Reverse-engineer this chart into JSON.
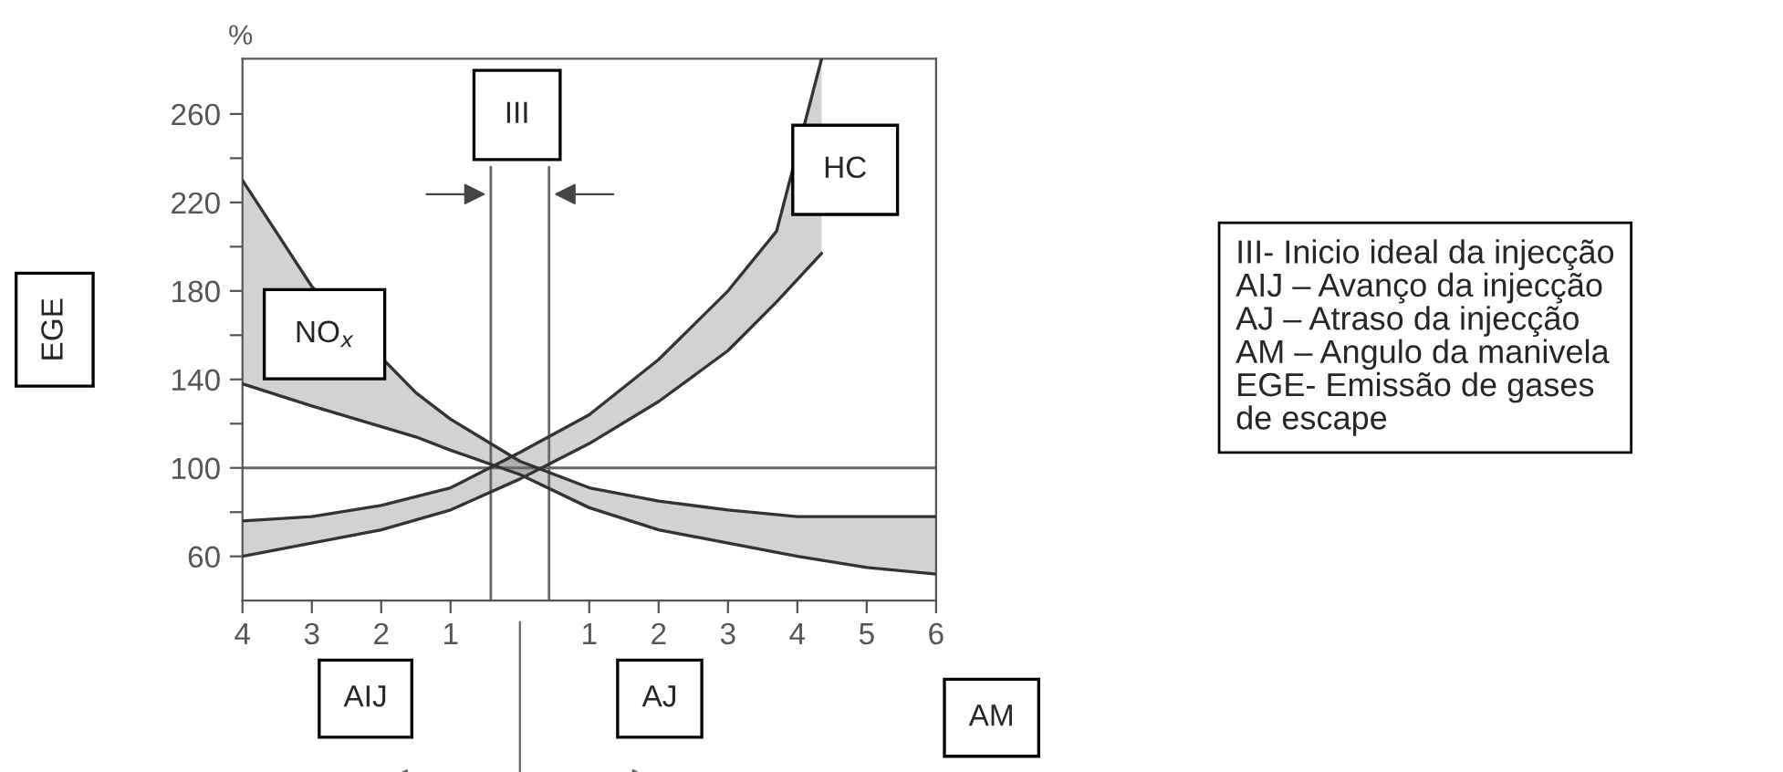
{
  "chart_data": {
    "type": "line",
    "ylabel": "EGE",
    "xlabel": "AM",
    "xlim": [
      -4,
      6
    ],
    "xticks": [
      {
        "value": -4,
        "label": "4"
      },
      {
        "value": -3,
        "label": "3"
      },
      {
        "value": -2,
        "label": "2"
      },
      {
        "value": -1,
        "label": "1"
      },
      1,
      2,
      3,
      4,
      5,
      6
    ],
    "ylim": [
      40,
      285
    ],
    "yticks": [
      60,
      {
        "value": 80,
        "label": null
      },
      100,
      {
        "value": 120,
        "label": null
      },
      140,
      {
        "value": 160,
        "label": null
      },
      180,
      {
        "value": 200,
        "label": null
      },
      220,
      {
        "value": 240,
        "label": null
      },
      260
    ],
    "series": [
      {
        "color": "#333333",
        "x": [
          -4,
          -3,
          -1.5,
          -1,
          0,
          1,
          2,
          3,
          4,
          5,
          6
        ],
        "values": [
          230,
          182,
          134,
          122,
          103,
          91,
          85,
          81,
          78,
          78,
          78
        ],
        "lower": [
          138,
          128,
          114,
          108,
          97,
          82,
          72,
          66,
          60,
          55,
          52
        ],
        "upper": [
          230,
          182,
          134,
          122,
          103,
          91,
          85,
          81,
          78,
          78,
          78
        ]
      },
      {
        "color": "#333333",
        "x": [
          -4,
          -3,
          -1.5,
          -1,
          0,
          1,
          2,
          3,
          4,
          5,
          6
        ],
        "values": [
          138,
          128,
          114,
          108,
          97,
          82,
          72,
          66,
          60,
          55,
          52
        ]
      },
      {
        "color": "#333333",
        "x": [
          -4,
          -3,
          -2,
          -1,
          0,
          1,
          2,
          3,
          3.7,
          4.35
        ],
        "values": [
          76,
          78,
          83,
          91,
          107,
          124,
          149,
          180,
          207,
          285
        ],
        "lower": [
          60,
          66,
          72,
          81,
          95,
          111,
          130,
          153,
          175,
          197
        ],
        "upper": [
          76,
          78,
          83,
          91,
          107,
          124,
          149,
          180,
          207,
          285
        ]
      },
      {
        "color": "#333333",
        "x": [
          -4,
          -3,
          -2,
          -1,
          0,
          1,
          2,
          3,
          3.7,
          4.35
        ],
        "values": [
          60,
          66,
          72,
          81,
          95,
          111,
          130,
          153,
          175,
          197
        ]
      }
    ],
    "ref_lines": [
      {
        "axis": "y",
        "value": 100
      },
      {
        "axis": "x",
        "value": -0.42
      },
      {
        "axis": "x",
        "value": 0.42
      }
    ],
    "annotations": [
      "NO$_{x}$",
      "HC",
      "III",
      "%",
      "AIJ",
      "AJ",
      "III- Inicio ideal da injecção\nAIJ – Avanço da injecção\nAJ – Atraso da injecção\nAM – Angulo da manivela\nEGE- Emissão de gases\nde escape"
    ],
    "grid": false,
    "legend": false
  }
}
